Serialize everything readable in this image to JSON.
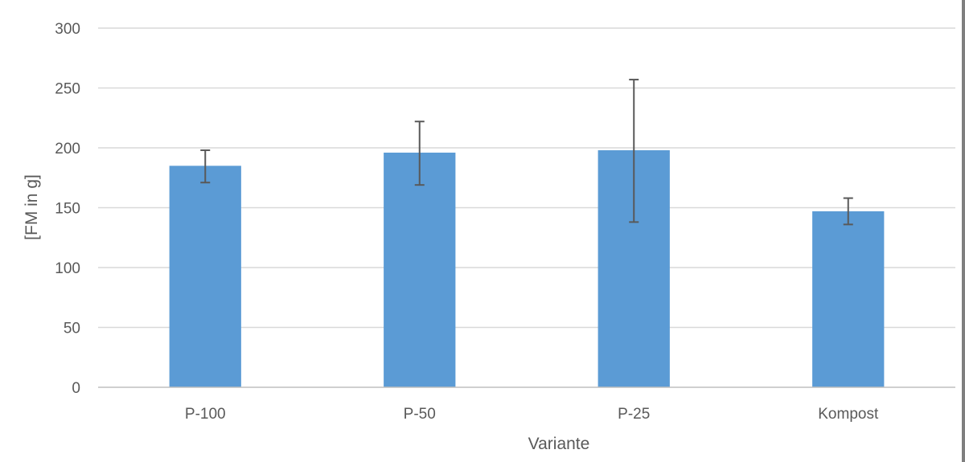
{
  "chart_data": {
    "type": "bar",
    "categories": [
      "P-100",
      "P-50",
      "P-25",
      "Kompost"
    ],
    "values": [
      185,
      196,
      198,
      147
    ],
    "error_high": [
      198,
      222,
      257,
      158
    ],
    "error_low": [
      171,
      169,
      138,
      136
    ],
    "xlabel": "Variante",
    "ylabel": "[FM in g]",
    "ylim": [
      0,
      300
    ],
    "yticks": [
      "0",
      "50",
      "100",
      "150",
      "200",
      "250",
      "300"
    ],
    "ytick_values": [
      0,
      50,
      100,
      150,
      200,
      250,
      300
    ],
    "grid": true,
    "legend": "none"
  },
  "colors": {
    "bar": "#5b9bd5",
    "gridline": "#d9d9d9",
    "axis": "#bfbfbf",
    "error_bar": "#595959",
    "text": "#595959"
  }
}
